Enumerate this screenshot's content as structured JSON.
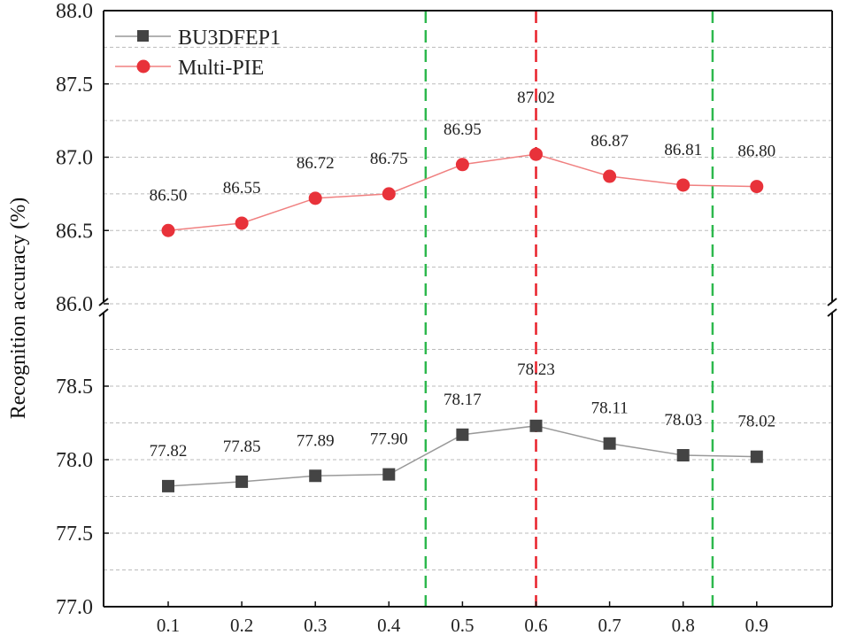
{
  "chart_data": {
    "type": "line",
    "ylabel": "Recognition accuracy (%)",
    "xlabel": "",
    "x": [
      0.1,
      0.2,
      0.3,
      0.4,
      0.5,
      0.6,
      0.7,
      0.8,
      0.9
    ],
    "x_tick_labels": [
      "0.1",
      "0.2",
      "0.3",
      "0.4",
      "0.5",
      "0.6",
      "0.7",
      "0.8",
      "0.9"
    ],
    "y_axis_broken": true,
    "ylim_upper": [
      86.0,
      88.0
    ],
    "ylim_lower": [
      77.0,
      79.0
    ],
    "y_tick_labels_upper": [
      "86.0",
      "86.5",
      "87.0",
      "87.5",
      "88.0"
    ],
    "y_tick_labels_lower": [
      "77.0",
      "77.5",
      "78.0",
      "78.5"
    ],
    "grid": "horizontal dashed, every 0.25",
    "legend_position": "top-left",
    "series": [
      {
        "name": "BU3DFEP1",
        "marker": "square",
        "color": "#444444",
        "line_color": "#999999",
        "values": [
          77.82,
          77.85,
          77.89,
          77.9,
          78.17,
          78.23,
          78.11,
          78.03,
          78.02
        ],
        "labels": [
          "77.82",
          "77.85",
          "77.89",
          "77.90",
          "78.17",
          "78.23",
          "78.11",
          "78.03",
          "78.02"
        ]
      },
      {
        "name": "Multi-PIE",
        "marker": "circle",
        "color": "#e8323a",
        "line_color": "#f08080",
        "values": [
          86.5,
          86.55,
          86.72,
          86.75,
          86.95,
          87.02,
          86.87,
          86.81,
          86.8
        ],
        "labels": [
          "86.50",
          "86.55",
          "86.72",
          "86.75",
          "86.95",
          "87.02",
          "86.87",
          "86.81",
          "86.80"
        ]
      }
    ],
    "vertical_lines": [
      {
        "x": 0.45,
        "color": "#2db84d",
        "style": "dashed"
      },
      {
        "x": 0.6,
        "color": "#e8202a",
        "style": "dashed"
      },
      {
        "x": 0.84,
        "color": "#2db84d",
        "style": "dashed"
      }
    ]
  }
}
